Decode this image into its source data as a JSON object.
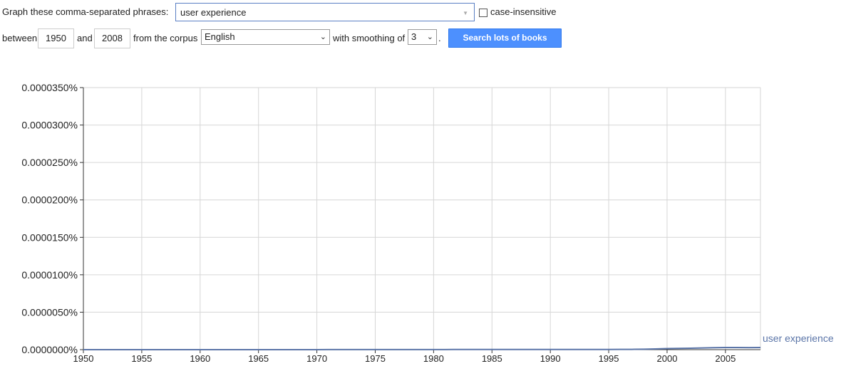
{
  "controls": {
    "graph_label": "Graph these comma-separated phrases:",
    "phrase_value": "user experience",
    "case_insensitive_label": "case-insensitive",
    "between_label": "between",
    "start_year": "1950",
    "and_label": "and",
    "end_year": "2008",
    "corpus_label": "from the corpus",
    "corpus_value": "English",
    "smoothing_label": "with smoothing of",
    "smoothing_value": "3",
    "period": ".",
    "search_button": "Search lots of books"
  },
  "chart_data": {
    "type": "line",
    "title": "",
    "xlabel": "",
    "ylabel": "",
    "xlim": [
      1950,
      2008
    ],
    "ylim": [
      0,
      3.5e-06
    ],
    "x_ticks": [
      1950,
      1955,
      1960,
      1965,
      1970,
      1975,
      1980,
      1985,
      1990,
      1995,
      2000,
      2005
    ],
    "y_ticks": [
      "0.0000000%",
      "0.0000050%",
      "0.0000100%",
      "0.0000150%",
      "0.0000200%",
      "0.0000250%",
      "0.0000300%",
      "0.0000350%"
    ],
    "grid": true,
    "colors": {
      "line": "#5b75a8",
      "grid": "#d6d6d6",
      "axis": "#333333"
    },
    "series": [
      {
        "name": "user experience",
        "x": [
          1950,
          1951,
          1952,
          1953,
          1954,
          1955,
          1956,
          1957,
          1958,
          1959,
          1960,
          1961,
          1962,
          1963,
          1964,
          1965,
          1966,
          1967,
          1968,
          1969,
          1970,
          1971,
          1972,
          1973,
          1974,
          1975,
          1976,
          1977,
          1978,
          1979,
          1980,
          1981,
          1982,
          1983,
          1984,
          1985,
          1986,
          1987,
          1988,
          1989,
          1990,
          1991,
          1992,
          1993,
          1994,
          1995,
          1996,
          1997,
          1998,
          1999,
          2000,
          2001,
          2002,
          2003,
          2004,
          2005,
          2006,
          2007,
          2008
        ],
        "values": [
          2e-11,
          2e-11,
          3e-11,
          4e-11,
          5e-11,
          6e-11,
          7e-11,
          8e-11,
          1e-10,
          1.2e-10,
          1.4e-10,
          1.6e-10,
          1.8e-10,
          2e-10,
          2.2e-10,
          2.5e-10,
          2.8e-10,
          3.3e-10,
          4e-10,
          4.8e-10,
          5.5e-10,
          6.5e-10,
          7.8e-10,
          9e-10,
          1e-09,
          1.05e-09,
          1.1e-09,
          1.2e-09,
          1.3e-09,
          1.4e-09,
          1.5e-09,
          1.7e-09,
          2e-09,
          2.3e-09,
          2.5e-09,
          2.6e-09,
          2.7e-09,
          2.8e-09,
          2.7e-09,
          2.6e-09,
          2.4e-09,
          2.3e-09,
          2.3e-09,
          2.4e-09,
          2.5e-09,
          2.8e-09,
          3e-09,
          4e-09,
          6e-09,
          9.5e-09,
          1.38e-08,
          1.65e-08,
          1.95e-08,
          2.22e-08,
          2.6e-08,
          2.83e-08,
          2.8e-08,
          2.75e-08,
          2.9e-08
        ]
      }
    ]
  }
}
